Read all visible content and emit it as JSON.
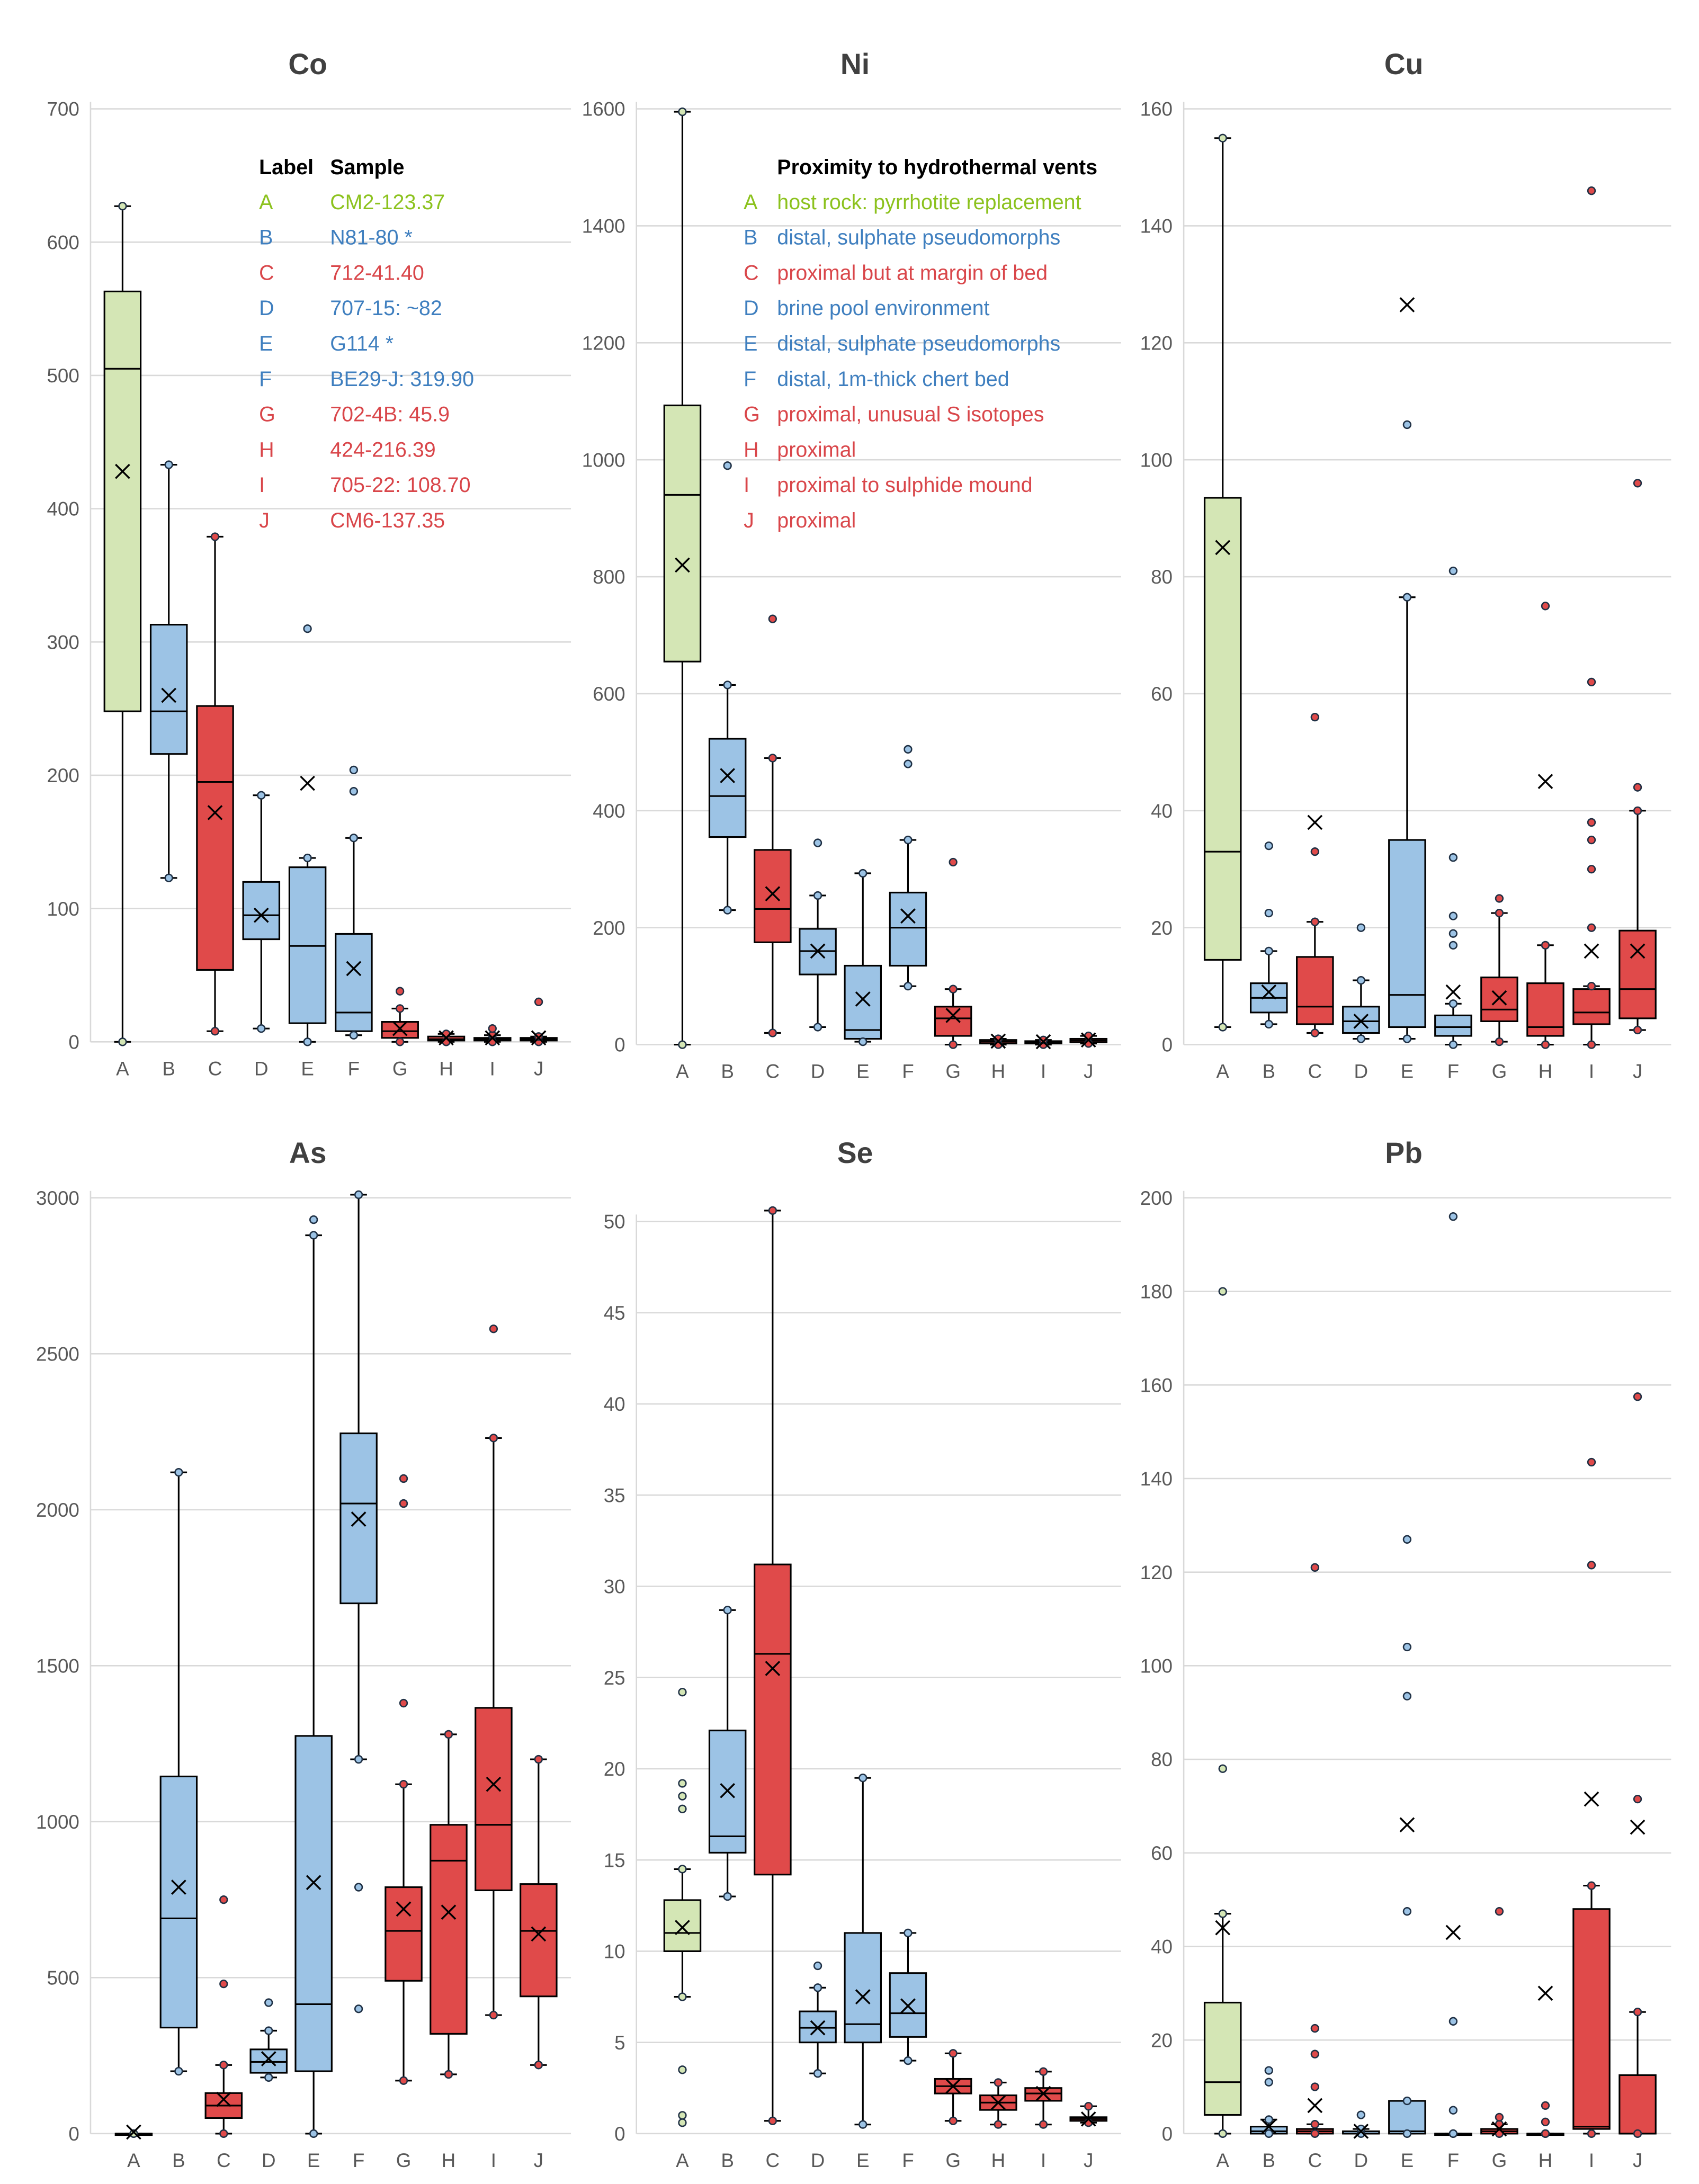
{
  "colors": {
    "host": "#d4e6b5",
    "distal": "#9cc3e5",
    "proximal": "#e04a4a",
    "legend_host": "#8cc21e",
    "legend_distal": "#3f7fbf",
    "legend_proximal": "#d9464a"
  },
  "category_groups": [
    "host",
    "distal",
    "proximal",
    "distal",
    "distal",
    "distal",
    "proximal",
    "proximal",
    "proximal",
    "proximal"
  ],
  "legend_samples": {
    "header_label": "Label",
    "header_sample": "Sample",
    "rows": [
      {
        "label": "A",
        "text": "CM2-123.37"
      },
      {
        "label": "B",
        "text": "N81-80 *"
      },
      {
        "label": "C",
        "text": "712-41.40"
      },
      {
        "label": "D",
        "text": "707-15: ~82"
      },
      {
        "label": "E",
        "text": "G114 *"
      },
      {
        "label": "F",
        "text": "BE29-J: 319.90"
      },
      {
        "label": "G",
        "text": "702-4B: 45.9"
      },
      {
        "label": "H",
        "text": "424-216.39"
      },
      {
        "label": "I",
        "text": "705-22: 108.70"
      },
      {
        "label": "J",
        "text": "CM6-137.35"
      }
    ]
  },
  "legend_proximity": {
    "header": "Proximity to hydrothermal vents",
    "rows": [
      {
        "label": "A",
        "text": "host rock: pyrrhotite replacement"
      },
      {
        "label": "B",
        "text": "distal, sulphate pseudomorphs"
      },
      {
        "label": "C",
        "text": "proximal but at margin of bed"
      },
      {
        "label": "D",
        "text": "brine pool environment"
      },
      {
        "label": "E",
        "text": "distal, sulphate pseudomorphs"
      },
      {
        "label": "F",
        "text": "distal, 1m-thick chert bed"
      },
      {
        "label": "G",
        "text": "proximal, unusual S isotopes"
      },
      {
        "label": "H",
        "text": "proximal"
      },
      {
        "label": "I",
        "text": "proximal to sulphide mound"
      },
      {
        "label": "J",
        "text": "proximal"
      }
    ]
  },
  "chart_data": [
    {
      "type": "box",
      "title": "Co",
      "ylim": [
        0,
        700
      ],
      "yticks": [
        0,
        100,
        200,
        300,
        400,
        500,
        600,
        700
      ],
      "categories": [
        "A",
        "B",
        "C",
        "D",
        "E",
        "F",
        "G",
        "H",
        "I",
        "J"
      ],
      "boxes": [
        {
          "min": 0,
          "q1": 248,
          "median": 505,
          "q3": 563,
          "max": 627,
          "mean": 428,
          "outliers": []
        },
        {
          "min": 123,
          "q1": 216,
          "median": 248,
          "q3": 313,
          "max": 433,
          "mean": 260,
          "outliers": []
        },
        {
          "min": 8,
          "q1": 54,
          "median": 195,
          "q3": 252,
          "max": 379,
          "mean": 172,
          "outliers": []
        },
        {
          "min": 10,
          "q1": 77,
          "median": 95,
          "q3": 120,
          "max": 185,
          "mean": 95,
          "outliers": []
        },
        {
          "min": 0,
          "q1": 14,
          "median": 72,
          "q3": 131,
          "max": 138,
          "mean": 194,
          "outliers": [
            310
          ]
        },
        {
          "min": 5,
          "q1": 8,
          "median": 22,
          "q3": 81,
          "max": 153,
          "mean": 55,
          "outliers": [
            188,
            204
          ]
        },
        {
          "min": 0,
          "q1": 3,
          "median": 8,
          "q3": 15,
          "max": 25,
          "mean": 10,
          "outliers": [
            38
          ]
        },
        {
          "min": 0,
          "q1": 1,
          "median": 2,
          "q3": 4,
          "max": 6,
          "mean": 3,
          "outliers": []
        },
        {
          "min": 0,
          "q1": 1,
          "median": 2,
          "q3": 3,
          "max": 5,
          "mean": 3,
          "outliers": [
            10
          ]
        },
        {
          "min": 0,
          "q1": 1,
          "median": 2,
          "q3": 3,
          "max": 4,
          "mean": 3,
          "outliers": [
            30
          ]
        }
      ]
    },
    {
      "type": "box",
      "title": "Ni",
      "ylim": [
        0,
        1600
      ],
      "yticks": [
        0,
        200,
        400,
        600,
        800,
        1000,
        1200,
        1400,
        1600
      ],
      "categories": [
        "A",
        "B",
        "C",
        "D",
        "E",
        "F",
        "G",
        "H",
        "I",
        "J"
      ],
      "boxes": [
        {
          "min": 0,
          "q1": 655,
          "median": 940,
          "q3": 1093,
          "max": 1595,
          "mean": 820,
          "outliers": []
        },
        {
          "min": 230,
          "q1": 355,
          "median": 425,
          "q3": 523,
          "max": 615,
          "mean": 460,
          "outliers": [
            990
          ]
        },
        {
          "min": 20,
          "q1": 175,
          "median": 232,
          "q3": 333,
          "max": 490,
          "mean": 258,
          "outliers": [
            728
          ]
        },
        {
          "min": 30,
          "q1": 120,
          "median": 160,
          "q3": 198,
          "max": 255,
          "mean": 160,
          "outliers": [
            345
          ]
        },
        {
          "min": 5,
          "q1": 10,
          "median": 25,
          "q3": 135,
          "max": 293,
          "mean": 78,
          "outliers": []
        },
        {
          "min": 100,
          "q1": 135,
          "median": 200,
          "q3": 260,
          "max": 350,
          "mean": 220,
          "outliers": [
            480,
            505
          ]
        },
        {
          "min": 0,
          "q1": 15,
          "median": 45,
          "q3": 65,
          "max": 95,
          "mean": 50,
          "outliers": [
            312
          ]
        },
        {
          "min": 0,
          "q1": 2,
          "median": 5,
          "q3": 8,
          "max": 10,
          "mean": 6,
          "outliers": []
        },
        {
          "min": 0,
          "q1": 2,
          "median": 4,
          "q3": 6,
          "max": 8,
          "mean": 5,
          "outliers": []
        },
        {
          "min": 2,
          "q1": 4,
          "median": 7,
          "q3": 10,
          "max": 15,
          "mean": 8,
          "outliers": []
        }
      ]
    },
    {
      "type": "box",
      "title": "Cu",
      "ylim": [
        0,
        160
      ],
      "yticks": [
        0,
        20,
        40,
        60,
        80,
        100,
        120,
        140,
        160
      ],
      "categories": [
        "A",
        "B",
        "C",
        "D",
        "E",
        "F",
        "G",
        "H",
        "I",
        "J"
      ],
      "boxes": [
        {
          "min": 3,
          "q1": 14.5,
          "median": 33,
          "q3": 93.5,
          "max": 155,
          "mean": 85,
          "outliers": []
        },
        {
          "min": 3.5,
          "q1": 5.5,
          "median": 8,
          "q3": 10.5,
          "max": 16,
          "mean": 9,
          "outliers": [
            22.5,
            34
          ]
        },
        {
          "min": 2,
          "q1": 3.5,
          "median": 6.5,
          "q3": 15,
          "max": 21,
          "mean": 38,
          "outliers": [
            33,
            56
          ]
        },
        {
          "min": 1,
          "q1": 2,
          "median": 4,
          "q3": 6.5,
          "max": 11,
          "mean": 4,
          "outliers": [
            20
          ]
        },
        {
          "min": 1,
          "q1": 3,
          "median": 8.5,
          "q3": 35,
          "max": 76.5,
          "mean": 126.5,
          "outliers": [
            106
          ]
        },
        {
          "min": 0,
          "q1": 1.5,
          "median": 3,
          "q3": 5,
          "max": 7,
          "mean": 9,
          "outliers": [
            17,
            19,
            22,
            32,
            81
          ]
        },
        {
          "min": 0.5,
          "q1": 4,
          "median": 6,
          "q3": 11.5,
          "max": 22.5,
          "mean": 8,
          "outliers": [
            25
          ]
        },
        {
          "min": 0,
          "q1": 1.5,
          "median": 3,
          "q3": 10.5,
          "max": 17,
          "mean": 45,
          "outliers": [
            75
          ]
        },
        {
          "min": 0,
          "q1": 3.5,
          "median": 5.5,
          "q3": 9.5,
          "max": 10,
          "mean": 16,
          "outliers": [
            20,
            30,
            35,
            38,
            62,
            146
          ]
        },
        {
          "min": 2.5,
          "q1": 4.5,
          "median": 9.5,
          "q3": 19.5,
          "max": 40,
          "mean": 16,
          "outliers": [
            44,
            96
          ]
        }
      ]
    },
    {
      "type": "box",
      "title": "As",
      "ylim": [
        0,
        3000
      ],
      "yticks": [
        0,
        500,
        1000,
        1500,
        2000,
        2500,
        3000
      ],
      "categories": [
        "A",
        "B",
        "C",
        "D",
        "E",
        "F",
        "G",
        "H",
        "I",
        "J"
      ],
      "boxes": [
        {
          "min": 0,
          "q1": 0,
          "median": 0,
          "q3": 0,
          "max": 0,
          "mean": 5,
          "outliers": []
        },
        {
          "min": 200,
          "q1": 340,
          "median": 690,
          "q3": 1145,
          "max": 2120,
          "mean": 790,
          "outliers": []
        },
        {
          "min": 0,
          "q1": 50,
          "median": 90,
          "q3": 130,
          "max": 220,
          "mean": 110,
          "outliers": [
            480,
            750
          ]
        },
        {
          "min": 180,
          "q1": 195,
          "median": 230,
          "q3": 270,
          "max": 330,
          "mean": 240,
          "outliers": [
            420
          ]
        },
        {
          "min": 0,
          "q1": 200,
          "median": 415,
          "q3": 1275,
          "max": 2880,
          "mean": 805,
          "outliers": [
            2930
          ]
        },
        {
          "min": 1200,
          "q1": 1700,
          "median": 2020,
          "q3": 2245,
          "max": 3010,
          "mean": 1970,
          "outliers": [
            400,
            790
          ]
        },
        {
          "min": 170,
          "q1": 490,
          "median": 650,
          "q3": 790,
          "max": 1120,
          "mean": 720,
          "outliers": [
            1380,
            2020,
            2100
          ]
        },
        {
          "min": 190,
          "q1": 320,
          "median": 875,
          "q3": 990,
          "max": 1280,
          "mean": 710,
          "outliers": []
        },
        {
          "min": 380,
          "q1": 780,
          "median": 990,
          "q3": 1365,
          "max": 2230,
          "mean": 1120,
          "outliers": [
            2580
          ]
        },
        {
          "min": 220,
          "q1": 440,
          "median": 650,
          "q3": 800,
          "max": 1200,
          "mean": 640,
          "outliers": []
        }
      ]
    },
    {
      "type": "box",
      "title": "Se",
      "ylim": [
        0,
        50
      ],
      "yticks": [
        0,
        5,
        10,
        15,
        20,
        25,
        30,
        35,
        40,
        45,
        50
      ],
      "categories": [
        "A",
        "B",
        "C",
        "D",
        "E",
        "F",
        "G",
        "H",
        "I",
        "J"
      ],
      "boxes": [
        {
          "min": 7.5,
          "q1": 10,
          "median": 11,
          "q3": 12.8,
          "max": 14.5,
          "mean": 11.3,
          "outliers": [
            0.6,
            1,
            3.5,
            17.8,
            18.5,
            19.2,
            24.2
          ]
        },
        {
          "min": 13,
          "q1": 15.4,
          "median": 16.3,
          "q3": 22.1,
          "max": 28.7,
          "mean": 18.8,
          "outliers": []
        },
        {
          "min": 0.7,
          "q1": 14.2,
          "median": 26.3,
          "q3": 31.2,
          "max": 50.6,
          "mean": 25.5,
          "outliers": []
        },
        {
          "min": 3.3,
          "q1": 5,
          "median": 5.8,
          "q3": 6.7,
          "max": 8,
          "mean": 5.8,
          "outliers": [
            9.2
          ]
        },
        {
          "min": 0.5,
          "q1": 5,
          "median": 6,
          "q3": 11,
          "max": 19.5,
          "mean": 7.5,
          "outliers": []
        },
        {
          "min": 4,
          "q1": 5.3,
          "median": 6.6,
          "q3": 8.8,
          "max": 11,
          "mean": 7,
          "outliers": []
        },
        {
          "min": 0.7,
          "q1": 2.2,
          "median": 2.6,
          "q3": 3,
          "max": 4.4,
          "mean": 2.6,
          "outliers": []
        },
        {
          "min": 0.5,
          "q1": 1.3,
          "median": 1.7,
          "q3": 2.1,
          "max": 2.8,
          "mean": 1.7,
          "outliers": []
        },
        {
          "min": 0.5,
          "q1": 1.8,
          "median": 2.2,
          "q3": 2.5,
          "max": 3.4,
          "mean": 2.2,
          "outliers": []
        },
        {
          "min": 0.6,
          "q1": 0.7,
          "median": 0.8,
          "q3": 0.9,
          "max": 1.5,
          "mean": 0.8,
          "outliers": []
        }
      ]
    },
    {
      "type": "box",
      "title": "Pb",
      "ylim": [
        0,
        200
      ],
      "yticks": [
        0,
        20,
        40,
        60,
        80,
        100,
        120,
        140,
        160,
        180,
        200
      ],
      "categories": [
        "A",
        "B",
        "C",
        "D",
        "E",
        "F",
        "G",
        "H",
        "I",
        "J"
      ],
      "boxes": [
        {
          "min": 0,
          "q1": 4,
          "median": 11,
          "q3": 28,
          "max": 47,
          "mean": 44,
          "outliers": [
            78,
            180
          ]
        },
        {
          "min": 0,
          "q1": 0,
          "median": 0.5,
          "q3": 1.5,
          "max": 3,
          "mean": 1.5,
          "outliers": [
            11,
            13.5
          ]
        },
        {
          "min": 0,
          "q1": 0,
          "median": 0.5,
          "q3": 1,
          "max": 2,
          "mean": 6,
          "outliers": [
            10,
            17,
            22.5,
            121
          ]
        },
        {
          "min": 0,
          "q1": 0,
          "median": 0,
          "q3": 0.5,
          "max": 1,
          "mean": 0.5,
          "outliers": [
            4
          ]
        },
        {
          "min": 0,
          "q1": 0,
          "median": 0.5,
          "q3": 7,
          "max": 7,
          "mean": 66,
          "outliers": [
            47.5,
            93.5,
            104,
            127
          ]
        },
        {
          "min": 0,
          "q1": 0,
          "median": 0,
          "q3": 0,
          "max": 0,
          "mean": 43,
          "outliers": [
            5,
            24,
            196
          ]
        },
        {
          "min": 0,
          "q1": 0,
          "median": 0.5,
          "q3": 1,
          "max": 2,
          "mean": 1,
          "outliers": [
            3.5,
            47.5
          ]
        },
        {
          "min": 0,
          "q1": 0,
          "median": 0,
          "q3": 0,
          "max": 0,
          "mean": 30,
          "outliers": [
            2.5,
            6
          ]
        },
        {
          "min": 0,
          "q1": 1,
          "median": 1.5,
          "q3": 48,
          "max": 53,
          "mean": 71.5,
          "outliers": [
            121.5,
            143.5
          ]
        },
        {
          "min": 0,
          "q1": 0,
          "median": 0,
          "q3": 12.5,
          "max": 26,
          "mean": 65.5,
          "outliers": [
            71.5,
            157.5
          ]
        }
      ]
    }
  ]
}
